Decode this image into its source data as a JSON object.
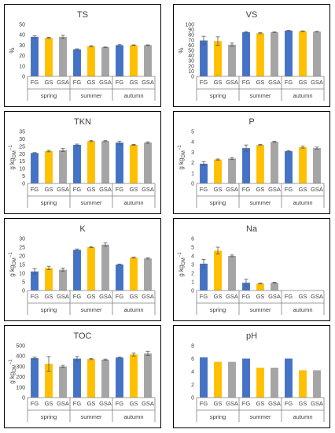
{
  "groups": [
    "spring",
    "summer",
    "autumn"
  ],
  "bar_labels": [
    "FG",
    "GS",
    "GSA"
  ],
  "colors": {
    "FG": "#4472C4",
    "GS": "#FFC000",
    "GSA": "#A5A5A5",
    "axis": "#7F7F7F",
    "text": "#404040",
    "frame": "#000000"
  },
  "chart_data": [
    {
      "type": "bar",
      "title": "TS",
      "ylabel": "%",
      "ylabel_sub": "",
      "ylabel_tail": "",
      "ylim": [
        0,
        50
      ],
      "yticks": [
        0,
        10,
        20,
        30,
        40,
        50
      ],
      "categories": [
        "FG",
        "GS",
        "GSA",
        "FG",
        "GS",
        "GSA",
        "FG",
        "GS",
        "GSA"
      ],
      "values": [
        38,
        37,
        38,
        26,
        29,
        28,
        30,
        30,
        30
      ],
      "errors": [
        1,
        0.5,
        1.5,
        0.5,
        0.5,
        0.3,
        0.5,
        0.3,
        0.3
      ]
    },
    {
      "type": "bar",
      "title": "VS",
      "ylabel": "%",
      "ylabel_sub": "",
      "ylabel_tail": "",
      "ylim": [
        0,
        100
      ],
      "yticks": [
        0,
        10,
        20,
        30,
        40,
        50,
        60,
        70,
        80,
        90,
        100
      ],
      "categories": [
        "FG",
        "GS",
        "GSA",
        "FG",
        "GS",
        "GSA",
        "FG",
        "GS",
        "GSA"
      ],
      "values": [
        69,
        68,
        61,
        85,
        83,
        85,
        88,
        87,
        86
      ],
      "errors": [
        8,
        8,
        3,
        1,
        1,
        0.5,
        0.5,
        0.5,
        0.5
      ]
    },
    {
      "type": "bar",
      "title": "TKN",
      "ylabel": "g kg",
      "ylabel_sub": "DM",
      "ylabel_tail": "−1",
      "ylim": [
        0,
        35
      ],
      "yticks": [
        0,
        5,
        10,
        15,
        20,
        25,
        30,
        35
      ],
      "categories": [
        "FG",
        "GS",
        "GSA",
        "FG",
        "GS",
        "GSA",
        "FG",
        "GS",
        "GSA"
      ],
      "values": [
        20.5,
        21.8,
        22.5,
        26,
        28.5,
        28.5,
        27.5,
        26,
        27.5
      ],
      "errors": [
        0.3,
        0.5,
        1,
        0.5,
        0.3,
        0.3,
        1,
        0.3,
        0.5
      ]
    },
    {
      "type": "bar",
      "title": "P",
      "ylabel": "g kg",
      "ylabel_sub": "DM",
      "ylabel_tail": "−1",
      "ylim": [
        0,
        5
      ],
      "yticks": [
        0,
        1,
        2,
        3,
        4,
        5
      ],
      "categories": [
        "FG",
        "GS",
        "GSA",
        "FG",
        "GS",
        "GSA",
        "FG",
        "GS",
        "GSA"
      ],
      "values": [
        1.9,
        2.3,
        2.4,
        3.4,
        3.7,
        4.0,
        3.1,
        3.5,
        3.4
      ],
      "errors": [
        0.2,
        0.05,
        0.1,
        0.3,
        0.05,
        0.05,
        0.05,
        0.1,
        0.1
      ]
    },
    {
      "type": "bar",
      "title": "K",
      "ylabel": "g kg",
      "ylabel_sub": "DM",
      "ylabel_tail": "−1",
      "ylim": [
        0,
        30
      ],
      "yticks": [
        0,
        5,
        10,
        15,
        20,
        25,
        30
      ],
      "categories": [
        "FG",
        "GS",
        "GSA",
        "FG",
        "GS",
        "GSA",
        "FG",
        "GS",
        "GSA"
      ],
      "values": [
        11,
        13,
        12,
        23.5,
        25,
        26.5,
        15,
        19,
        18.5
      ],
      "errors": [
        1.5,
        1,
        1,
        0.5,
        0.3,
        1,
        0.3,
        0.3,
        0.3
      ]
    },
    {
      "type": "bar",
      "title": "Na",
      "ylabel": "g kg",
      "ylabel_sub": "DM",
      "ylabel_tail": "−1",
      "ylim": [
        0,
        6
      ],
      "yticks": [
        0,
        1,
        2,
        3,
        4,
        5,
        6
      ],
      "categories": [
        "FG",
        "GS",
        "GSA",
        "FG",
        "GS",
        "GSA",
        "FG",
        "GS",
        "GSA"
      ],
      "values": [
        3.1,
        4.6,
        4.0,
        0.9,
        0.8,
        0.9,
        0,
        0,
        0
      ],
      "errors": [
        0.5,
        0.4,
        0.1,
        0.4,
        0.05,
        0.05,
        0,
        0,
        0
      ]
    },
    {
      "type": "bar",
      "title": "TOC",
      "ylabel": "g kg",
      "ylabel_sub": "DM",
      "ylabel_tail": "−1",
      "ylim": [
        0,
        500
      ],
      "yticks": [
        0,
        100,
        200,
        300,
        400,
        500
      ],
      "categories": [
        "FG",
        "GS",
        "GSA",
        "FG",
        "GS",
        "GSA",
        "FG",
        "GS",
        "GSA"
      ],
      "values": [
        380,
        325,
        300,
        375,
        370,
        365,
        385,
        415,
        425
      ],
      "errors": [
        10,
        70,
        10,
        20,
        5,
        5,
        5,
        15,
        20
      ]
    },
    {
      "type": "bar",
      "title": "pH",
      "ylabel": "",
      "ylabel_sub": "",
      "ylabel_tail": "",
      "ylim": [
        0,
        8
      ],
      "yticks": [
        0,
        2,
        4,
        6,
        8
      ],
      "categories": [
        "FG",
        "GS",
        "GSA",
        "FG",
        "GS",
        "GSA",
        "FG",
        "GS",
        "GSA"
      ],
      "values": [
        6.2,
        5.5,
        5.5,
        6.0,
        4.6,
        4.6,
        6.0,
        4.2,
        4.2
      ],
      "errors": [
        0,
        0,
        0,
        0,
        0,
        0,
        0,
        0,
        0
      ]
    }
  ]
}
